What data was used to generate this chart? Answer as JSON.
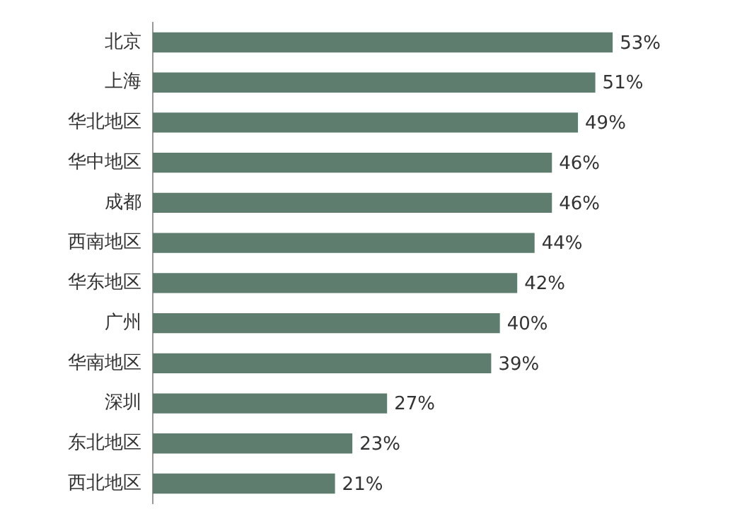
{
  "chart_data": {
    "type": "bar",
    "orientation": "horizontal",
    "categories": [
      "北京",
      "上海",
      "华北地区",
      "华中地区",
      "成都",
      "西南地区",
      "华东地区",
      "广州",
      "华南地区",
      "深圳",
      "东北地区",
      "西北地区"
    ],
    "values": [
      53,
      51,
      49,
      46,
      46,
      44,
      42,
      40,
      39,
      27,
      23,
      21
    ],
    "value_labels": [
      "53%",
      "51%",
      "49%",
      "46%",
      "46%",
      "44%",
      "42%",
      "40%",
      "39%",
      "27%",
      "23%",
      "21%"
    ],
    "color": "#5e7d6e",
    "grid": false,
    "legend": false,
    "tick_labels": "y"
  }
}
